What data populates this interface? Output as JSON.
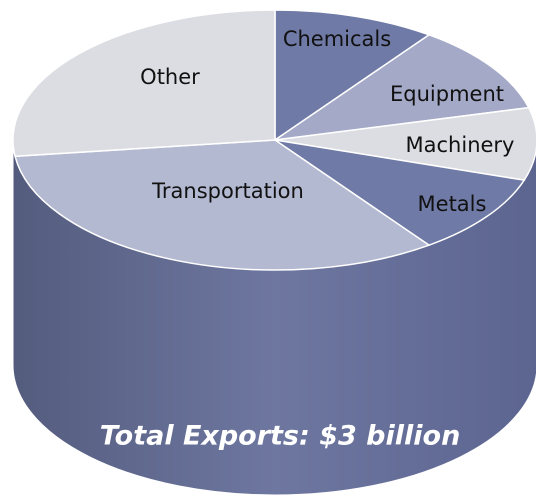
{
  "chart_data": {
    "type": "pie3d",
    "title": "Total Exports: $3 billion",
    "categories": [
      "Chemicals",
      "Equipment",
      "Machinery",
      "Metals",
      "Transportation",
      "Other"
    ],
    "values": [
      10,
      11,
      9,
      10,
      33,
      27
    ],
    "colors": [
      "#6f7aa6",
      "#a3a9c6",
      "#dcdde3",
      "#6f7aa6",
      "#b4b9d2",
      "#dcdde3"
    ]
  }
}
